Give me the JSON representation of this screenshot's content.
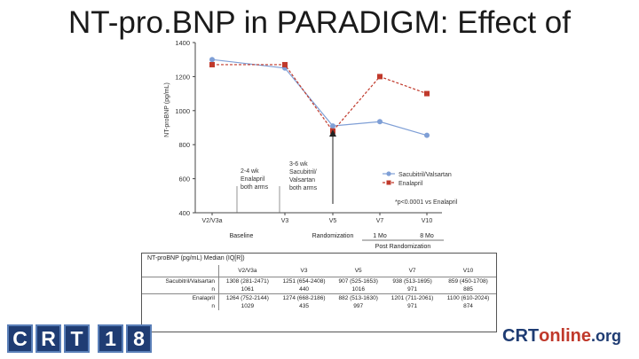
{
  "slide": {
    "title": "NT-pro.BNP in PARADIGM: Effect of"
  },
  "chart_data": {
    "type": "line",
    "ylabel": "NT-proBNP (pg/mL)",
    "ylim": [
      400,
      1400
    ],
    "yticks": [
      400,
      600,
      800,
      1000,
      1200,
      1400
    ],
    "categories": [
      "V2/V3a",
      "V3",
      "V5",
      "V7",
      "V10"
    ],
    "series": [
      {
        "name": "Sacubitril/Valsartan",
        "color": "#7f9fd6",
        "marker": "circle",
        "values": [
          1300,
          1250,
          910,
          935,
          855
        ]
      },
      {
        "name": "Enalapril",
        "color": "#c0392b",
        "marker": "square",
        "values": [
          1270,
          1270,
          880,
          1200,
          1100
        ]
      }
    ],
    "legend_note": "*p<0.0001 vs Enalapril",
    "annotations": [
      {
        "lines": [
          "2-4 wk",
          "Enalapril",
          "both arms"
        ]
      },
      {
        "lines": [
          "3-6 wk",
          "Sacubitril/",
          "Valsartan",
          "both arms"
        ]
      }
    ],
    "phase_labels": {
      "baseline": "Baseline",
      "randomization": "Randomization",
      "one_mo": "1 Mo",
      "eight_mo": "8 Mo",
      "post": "Post Randomization"
    }
  },
  "table": {
    "title": "NT-proBNP (pg/mL) Median (IQ[R])",
    "headers": [
      "",
      "V2/V3a",
      "V3",
      "V5",
      "V7",
      "V10"
    ],
    "rows": [
      {
        "label": "Sacubitril/Valsartan",
        "cells": [
          "1308 (281-2471)",
          "1251 (654-2408)",
          "907 (525-1653)",
          "938 (513-1695)",
          "859 (450-1708)"
        ]
      },
      {
        "label": "n",
        "cells": [
          "1061",
          "440",
          "1016",
          "971",
          "885"
        ]
      },
      {
        "label": "Enalapril",
        "cells": [
          "1264 (752-2144)",
          "1274 (668-2186)",
          "882 (513-1630)",
          "1201 (711-2061)",
          "1100 (610-2024)"
        ]
      },
      {
        "label": "n",
        "cells": [
          "1029",
          "435",
          "997",
          "971",
          "874"
        ]
      }
    ]
  },
  "logos": {
    "crt_letters": [
      "C",
      "R",
      "T",
      "1",
      "8"
    ],
    "online": {
      "part1": "CRT",
      "part2": "online",
      "part3": ".org"
    }
  }
}
